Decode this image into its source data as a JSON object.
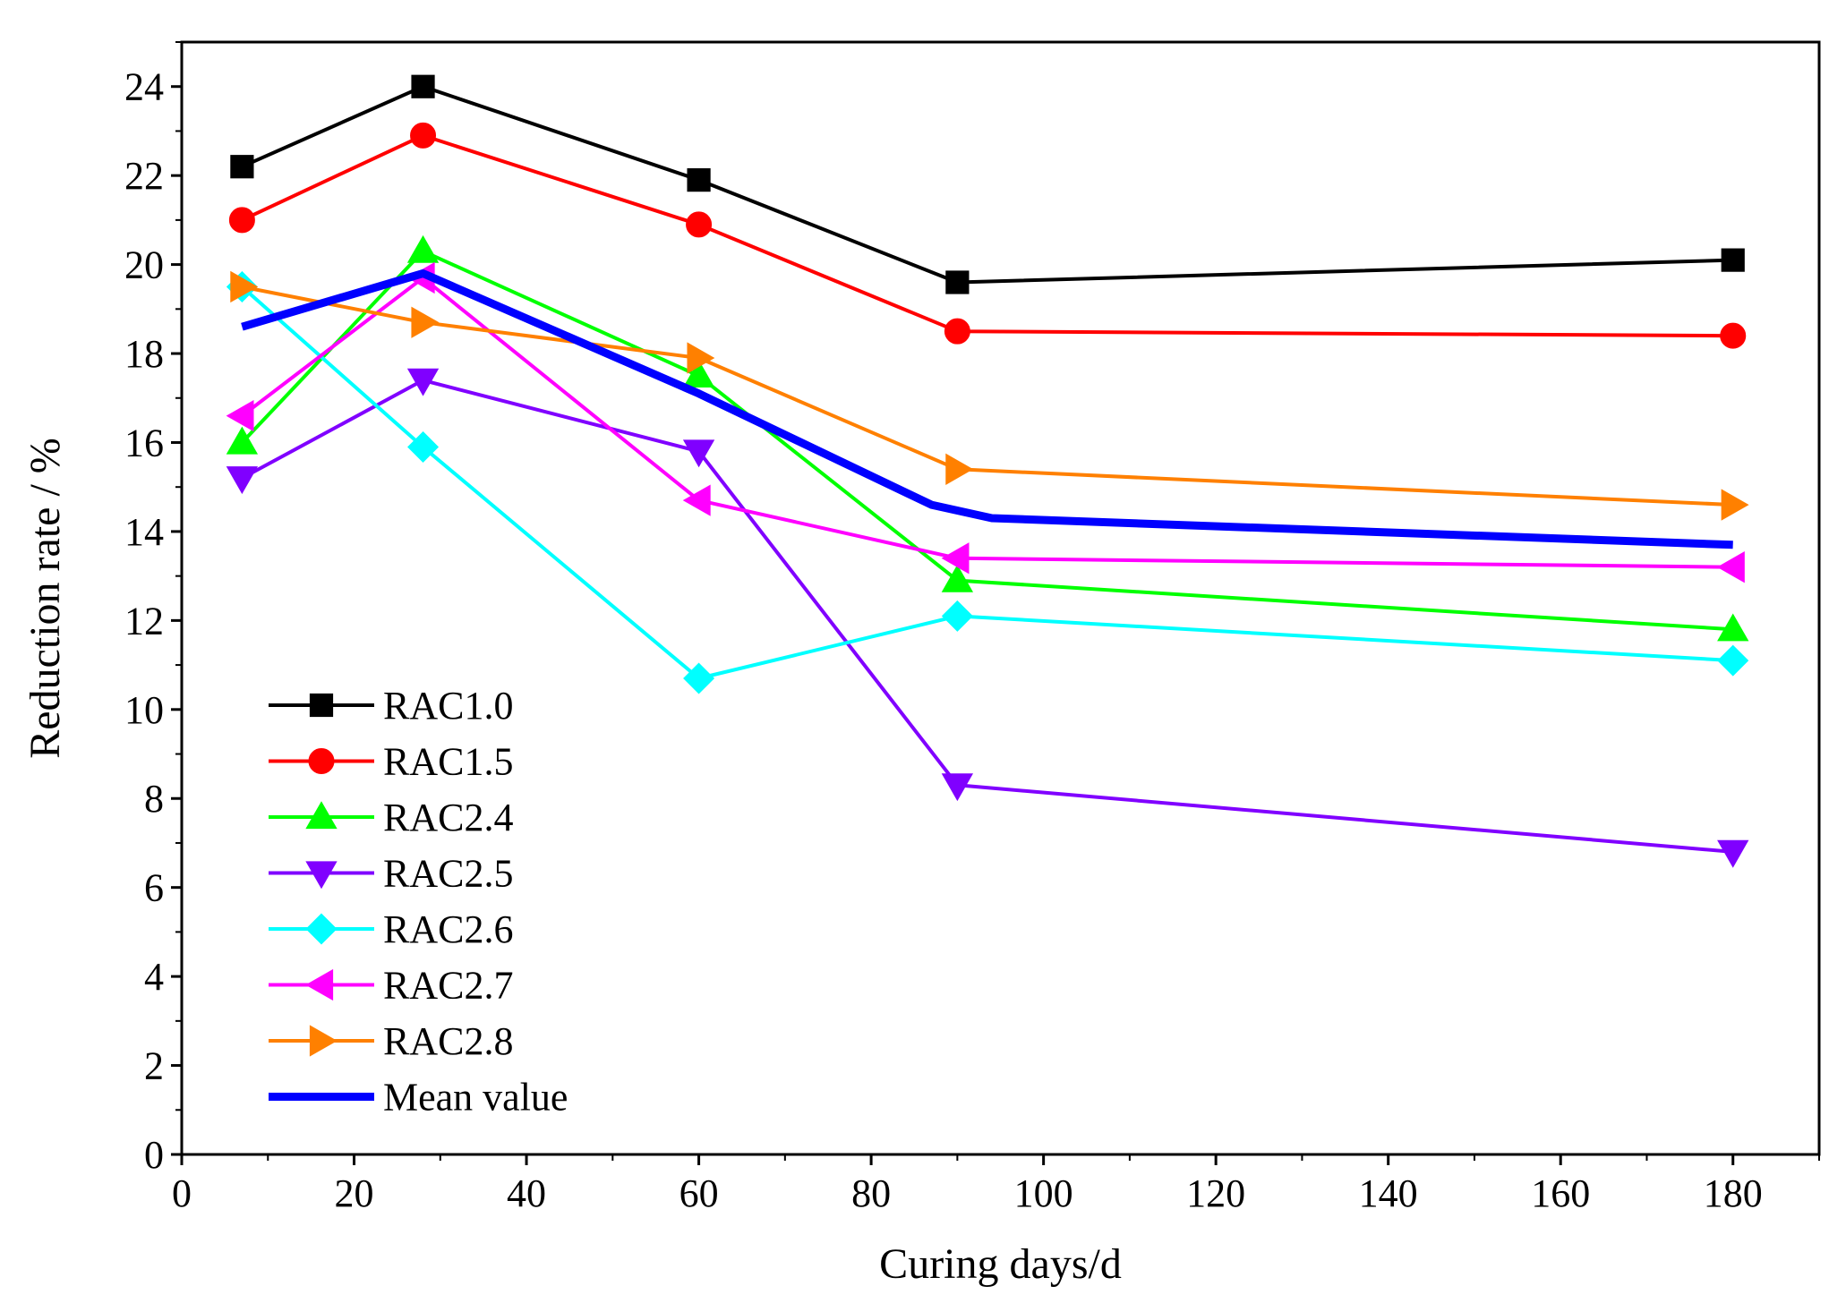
{
  "chart_data": {
    "type": "line",
    "title": "",
    "xlabel": "Curing days/d",
    "ylabel": "Reduction rate / %",
    "xlim": [
      0,
      190
    ],
    "ylim": [
      0,
      25
    ],
    "xticks": [
      0,
      20,
      40,
      60,
      80,
      100,
      120,
      140,
      160,
      180
    ],
    "yticks": [
      0,
      2,
      4,
      6,
      8,
      10,
      12,
      14,
      16,
      18,
      20,
      22,
      24
    ],
    "x": [
      7,
      28,
      60,
      90,
      180
    ],
    "grid": false,
    "legend_position": "bottom-left",
    "series": [
      {
        "name": "RAC1.0",
        "values": [
          22.2,
          24.0,
          21.9,
          19.6,
          20.1
        ],
        "color": "#000000",
        "marker": "square"
      },
      {
        "name": "RAC1.5",
        "values": [
          21.0,
          22.9,
          20.9,
          18.5,
          18.4
        ],
        "color": "#ff0000",
        "marker": "circle"
      },
      {
        "name": "RAC2.4",
        "values": [
          16.0,
          20.3,
          17.5,
          12.9,
          11.8
        ],
        "color": "#00ff00",
        "marker": "triangle-up"
      },
      {
        "name": "RAC2.5",
        "values": [
          15.2,
          17.4,
          15.8,
          8.3,
          6.8
        ],
        "color": "#8000ff",
        "marker": "triangle-down"
      },
      {
        "name": "RAC2.6",
        "values": [
          19.5,
          15.9,
          10.7,
          12.1,
          11.1
        ],
        "color": "#00ffff",
        "marker": "diamond"
      },
      {
        "name": "RAC2.7",
        "values": [
          16.6,
          19.7,
          14.7,
          13.4,
          13.2
        ],
        "color": "#ff00ff",
        "marker": "triangle-left"
      },
      {
        "name": "RAC2.8",
        "values": [
          19.5,
          18.7,
          17.9,
          15.4,
          14.6
        ],
        "color": "#ff8000",
        "marker": "triangle-right"
      },
      {
        "name": "Mean value",
        "values": [
          18.6,
          19.8,
          17.1,
          14.6,
          14.3,
          13.7
        ],
        "x": [
          7,
          28,
          60,
          87,
          94,
          180
        ],
        "color": "#0000ff",
        "marker": "none",
        "thick": true
      }
    ]
  }
}
